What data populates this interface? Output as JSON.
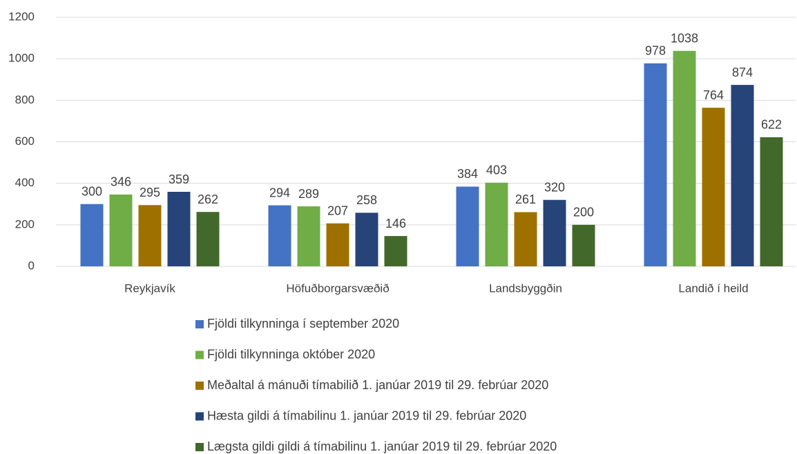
{
  "chart_data": {
    "type": "bar",
    "categories": [
      "Reykjavík",
      "Höfuðborgarsvæðið",
      "Landsbyggðin",
      "Landið í heild"
    ],
    "series": [
      {
        "name": "Fjöldi tilkynninga í september 2020",
        "color": "#4472c4",
        "values": [
          300,
          294,
          384,
          978
        ]
      },
      {
        "name": "Fjöldi tilkynninga október 2020",
        "color": "#70ad47",
        "values": [
          346,
          289,
          403,
          1038
        ]
      },
      {
        "name": "Meðaltal á mánuði tímabilið 1. janúar 2019 til 29. febrúar 2020",
        "color": "#9e7000",
        "values": [
          295,
          207,
          261,
          764
        ]
      },
      {
        "name": "Hæsta gildi á tímabilinu 1. janúar 2019 til 29. febrúar 2020",
        "color": "#264478",
        "values": [
          359,
          258,
          320,
          874
        ]
      },
      {
        "name": "Lægsta gildi gildi á tímabilinu 1. janúar 2019 til 29. febrúar 2020",
        "color": "#43682b",
        "values": [
          262,
          146,
          200,
          622
        ]
      }
    ],
    "ylim": [
      0,
      1200
    ],
    "yticks": [
      0,
      200,
      400,
      600,
      800,
      1000,
      1200
    ],
    "grid": true
  }
}
